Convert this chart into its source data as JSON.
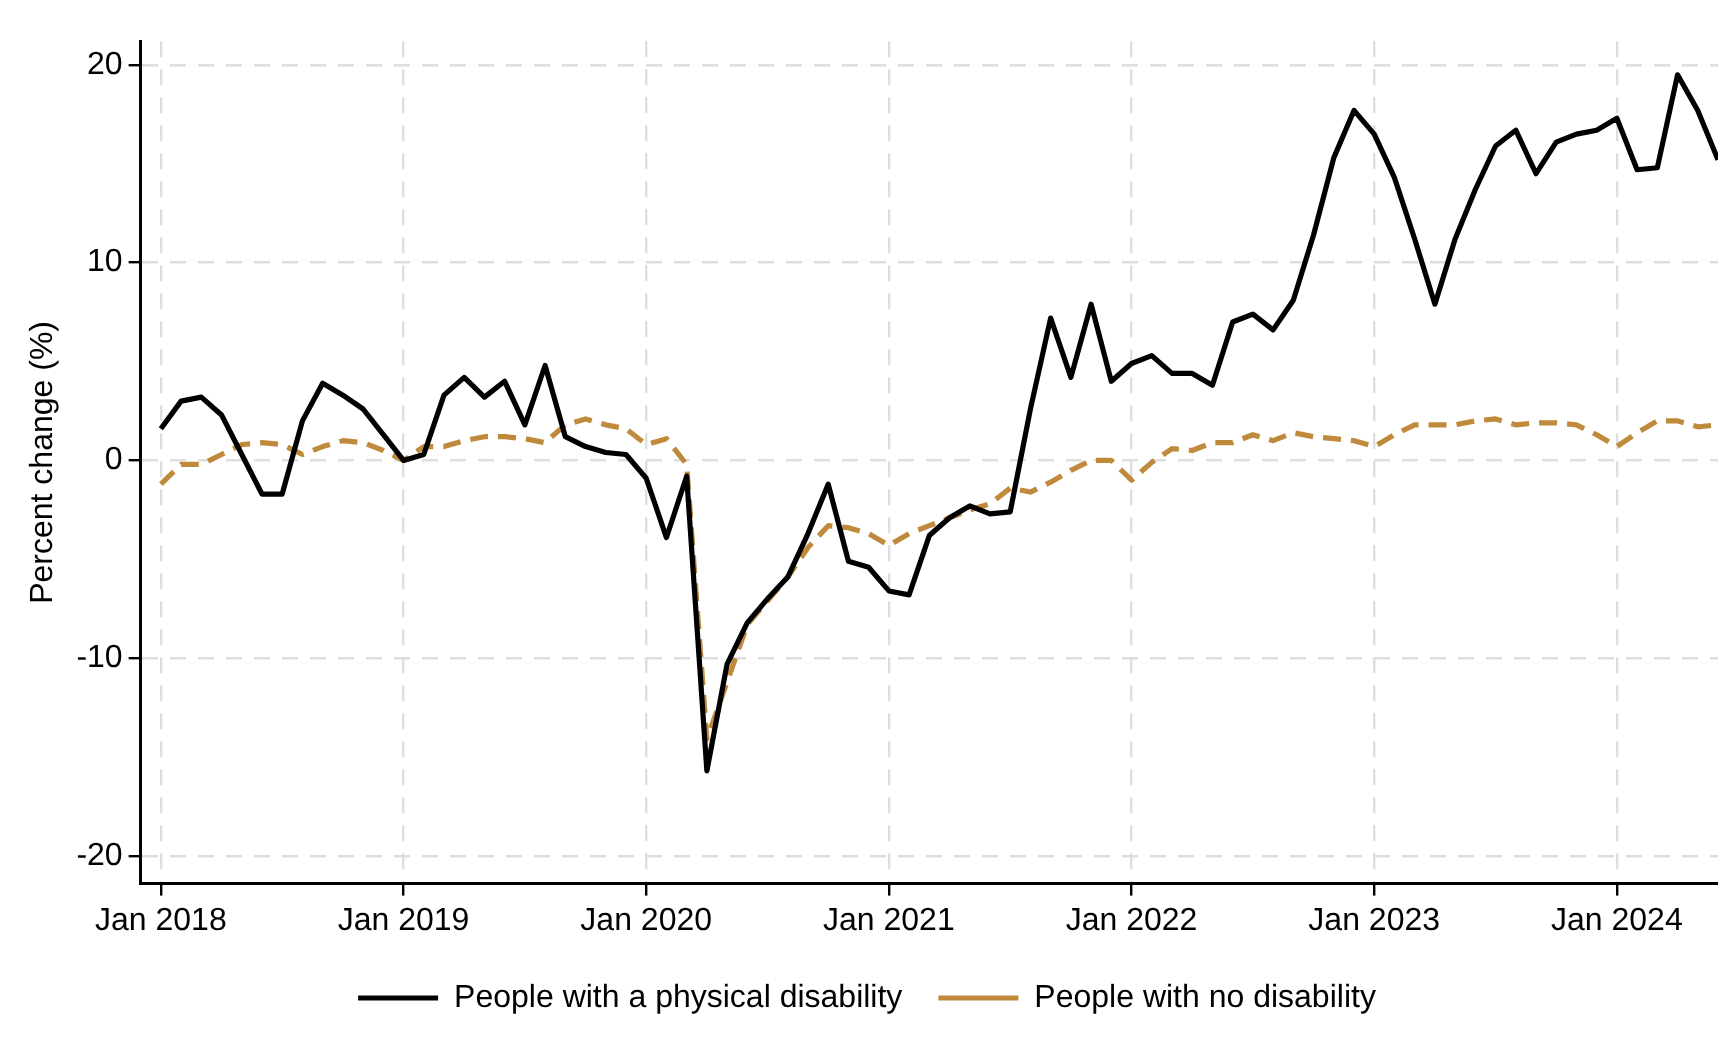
{
  "chart_data": {
    "type": "line",
    "ylabel": "Percent change (%)",
    "x": [
      "2018-01",
      "2018-02",
      "2018-03",
      "2018-04",
      "2018-05",
      "2018-06",
      "2018-07",
      "2018-08",
      "2018-09",
      "2018-10",
      "2018-11",
      "2018-12",
      "2019-01",
      "2019-02",
      "2019-03",
      "2019-04",
      "2019-05",
      "2019-06",
      "2019-07",
      "2019-08",
      "2019-09",
      "2019-10",
      "2019-11",
      "2019-12",
      "2020-01",
      "2020-02",
      "2020-03",
      "2020-04",
      "2020-05",
      "2020-06",
      "2020-07",
      "2020-08",
      "2020-09",
      "2020-10",
      "2020-11",
      "2020-12",
      "2021-01",
      "2021-02",
      "2021-03",
      "2021-04",
      "2021-05",
      "2021-06",
      "2021-07",
      "2021-08",
      "2021-09",
      "2021-10",
      "2021-11",
      "2021-12",
      "2022-01",
      "2022-02",
      "2022-03",
      "2022-04",
      "2022-05",
      "2022-06",
      "2022-07",
      "2022-08",
      "2022-09",
      "2022-10",
      "2022-11",
      "2022-12",
      "2023-01",
      "2023-02",
      "2023-03",
      "2023-04",
      "2023-05",
      "2023-06",
      "2023-07",
      "2023-08",
      "2023-09",
      "2023-10",
      "2023-11",
      "2023-12",
      "2024-01",
      "2024-02",
      "2024-03",
      "2024-04",
      "2024-05",
      "2024-06"
    ],
    "series": [
      {
        "name": "People with a physical disability",
        "color": "#000000",
        "line_style": "solid",
        "values": [
          1.6,
          3.0,
          3.2,
          2.3,
          0.3,
          -1.7,
          -1.7,
          2.0,
          3.9,
          3.3,
          2.6,
          1.3,
          0.0,
          0.3,
          3.3,
          4.2,
          3.2,
          4.0,
          1.8,
          4.8,
          1.2,
          0.7,
          0.4,
          0.3,
          -0.9,
          -3.9,
          -0.8,
          -15.7,
          -10.3,
          -8.2,
          -7.0,
          -5.9,
          -3.7,
          -1.2,
          -5.1,
          -5.4,
          -6.6,
          -6.8,
          -3.8,
          -2.9,
          -2.3,
          -2.7,
          -2.6,
          2.6,
          7.2,
          4.2,
          7.9,
          4.0,
          4.9,
          5.3,
          4.4,
          4.4,
          3.8,
          7.0,
          7.4,
          6.6,
          8.1,
          11.4,
          15.3,
          17.7,
          16.5,
          14.3,
          11.2,
          7.9,
          11.2,
          13.7,
          15.9,
          16.7,
          14.5,
          16.1,
          16.5,
          16.7,
          17.3,
          14.7,
          14.8,
          19.5,
          17.7,
          15.2
        ]
      },
      {
        "name": "People with no disability",
        "color": "#c08a3c",
        "line_style": "dashed",
        "values": [
          -1.2,
          -0.2,
          -0.2,
          0.3,
          0.8,
          0.9,
          0.8,
          0.3,
          0.7,
          1.0,
          0.9,
          0.5,
          0.0,
          0.7,
          0.7,
          1.0,
          1.2,
          1.2,
          1.1,
          0.9,
          1.8,
          2.1,
          1.8,
          1.6,
          0.8,
          1.1,
          -0.2,
          -14.1,
          -11.2,
          -8.3,
          -7.1,
          -5.9,
          -4.4,
          -3.3,
          -3.4,
          -3.7,
          -4.3,
          -3.7,
          -3.3,
          -2.9,
          -2.5,
          -2.2,
          -1.4,
          -1.6,
          -1.1,
          -0.5,
          0.0,
          0.0,
          -1.0,
          -0.1,
          0.6,
          0.5,
          0.9,
          0.9,
          1.3,
          1.0,
          1.4,
          1.2,
          1.1,
          1.0,
          0.7,
          1.3,
          1.8,
          1.8,
          1.8,
          2.0,
          2.1,
          1.8,
          1.9,
          1.9,
          1.8,
          1.3,
          0.7,
          1.4,
          2.0,
          2.0,
          1.7,
          1.8
        ]
      }
    ],
    "xlim": [
      "2017-12",
      "2024-06"
    ],
    "xticks": [
      {
        "value": "2018-01",
        "label": "Jan 2018"
      },
      {
        "value": "2019-01",
        "label": "Jan 2019"
      },
      {
        "value": "2020-01",
        "label": "Jan 2020"
      },
      {
        "value": "2021-01",
        "label": "Jan 2021"
      },
      {
        "value": "2022-01",
        "label": "Jan 2022"
      },
      {
        "value": "2023-01",
        "label": "Jan 2023"
      },
      {
        "value": "2024-01",
        "label": "Jan 2024"
      }
    ],
    "ylim": [
      -21.4,
      21.2
    ],
    "yticks": [
      -20,
      -10,
      0,
      10,
      20
    ],
    "grid": true,
    "legend": "bottom",
    "marker": "none"
  }
}
